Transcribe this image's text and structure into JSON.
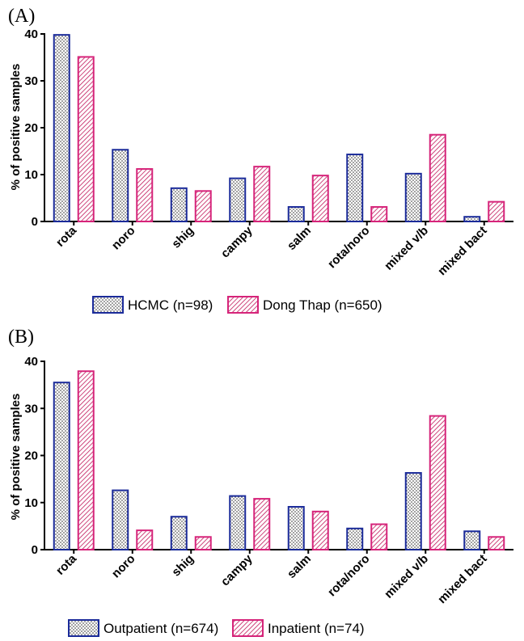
{
  "colors": {
    "blue": "#1b2b9a",
    "pink": "#d6247a",
    "axis": "#000000"
  },
  "chart_data": [
    {
      "panel_label": "(A)",
      "type": "bar",
      "ylabel": "% of positive samples",
      "ylim": [
        0,
        40
      ],
      "yticks": [
        0,
        10,
        20,
        30,
        40
      ],
      "categories": [
        "rota",
        "noro",
        "shig",
        "campy",
        "salm",
        "rota/noro",
        "mixed v/b",
        "mixed bact"
      ],
      "series": [
        {
          "name": "HCMC (n=98)",
          "pattern": "dots",
          "color": "#1b2b9a",
          "values": [
            39.8,
            15.3,
            7.1,
            9.2,
            3.1,
            14.3,
            10.2,
            1.0
          ]
        },
        {
          "name": "Dong Thap (n=650)",
          "pattern": "hatch",
          "color": "#d6247a",
          "values": [
            35.1,
            11.2,
            6.5,
            11.7,
            9.8,
            3.1,
            18.5,
            4.2
          ]
        }
      ],
      "legend_position": "bottom"
    },
    {
      "panel_label": "(B)",
      "type": "bar",
      "ylabel": "% of positive samples",
      "ylim": [
        0,
        40
      ],
      "yticks": [
        0,
        10,
        20,
        30,
        40
      ],
      "categories": [
        "rota",
        "noro",
        "shig",
        "campy",
        "salm",
        "rota/noro",
        "mixed v/b",
        "mixed bact"
      ],
      "series": [
        {
          "name": "Outpatient (n=674)",
          "pattern": "dots",
          "color": "#1b2b9a",
          "values": [
            35.5,
            12.6,
            7.0,
            11.4,
            9.1,
            4.5,
            16.3,
            3.9
          ]
        },
        {
          "name": "Inpatient (n=74)",
          "pattern": "hatch",
          "color": "#d6247a",
          "values": [
            37.9,
            4.1,
            2.7,
            10.8,
            8.1,
            5.4,
            28.4,
            2.7
          ]
        }
      ],
      "legend_position": "bottom"
    }
  ]
}
